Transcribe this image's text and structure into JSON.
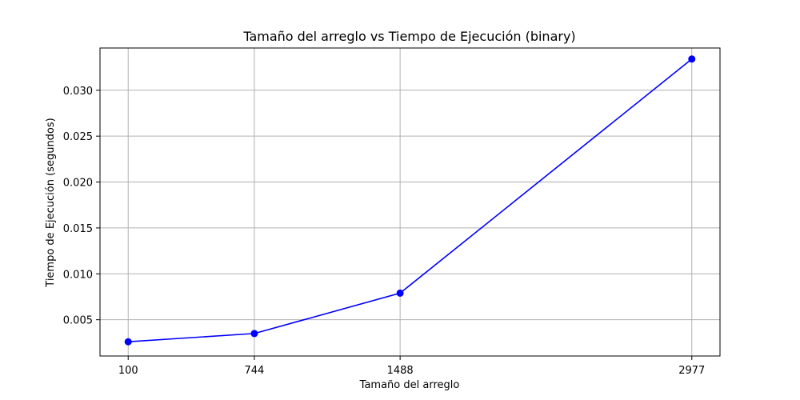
{
  "chart_data": {
    "type": "line",
    "title": "Tamaño del arreglo vs Tiempo de Ejecución (binary)",
    "xlabel": "Tamaño del arreglo",
    "ylabel": "Tiempo de Ejecución (segundos)",
    "x": [
      100,
      744,
      1488,
      2977
    ],
    "x_tick_labels": [
      "100",
      "744",
      "1488",
      "2977"
    ],
    "y_ticks": [
      0.005,
      0.01,
      0.015,
      0.02,
      0.025,
      0.03
    ],
    "y_tick_labels": [
      "0.005",
      "0.010",
      "0.015",
      "0.020",
      "0.025",
      "0.030"
    ],
    "xlim": [
      -43.85,
      3120.85
    ],
    "ylim": [
      0.00105,
      0.0346
    ],
    "grid": true,
    "series": [
      {
        "values": [
          0.0026,
          0.0035,
          0.0079,
          0.0334
        ],
        "color": "#0000ff",
        "marker": "circle"
      }
    ]
  }
}
